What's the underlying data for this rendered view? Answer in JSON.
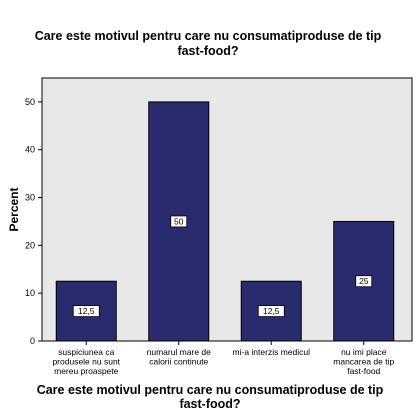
{
  "chart_data": {
    "type": "bar",
    "title": [
      "Care este motivul pentru care nu consumatiproduse de tip",
      "fast-food?"
    ],
    "xlabel": [
      "Care este motivul pentru care nu consumatiproduse de tip",
      "fast-food?"
    ],
    "ylabel": "Percent",
    "ylim": [
      0,
      55
    ],
    "yticks": [
      0,
      10,
      20,
      30,
      40,
      50
    ],
    "categories": [
      [
        "suspiciunea ca",
        "produsele nu sunt",
        "mereu proaspete"
      ],
      [
        "numarul mare de",
        "calorii continute"
      ],
      [
        "mi-a interzis medicul"
      ],
      [
        "nu imi place",
        "mancarea de tip",
        "fast-food"
      ]
    ],
    "values": [
      12.5,
      50,
      12.5,
      25
    ],
    "value_labels": [
      "12,5",
      "50",
      "12,5",
      "25"
    ],
    "bar_color": "#2a2a6e",
    "plot_background": "#e8e8e8",
    "grid": false,
    "legend": "none"
  }
}
